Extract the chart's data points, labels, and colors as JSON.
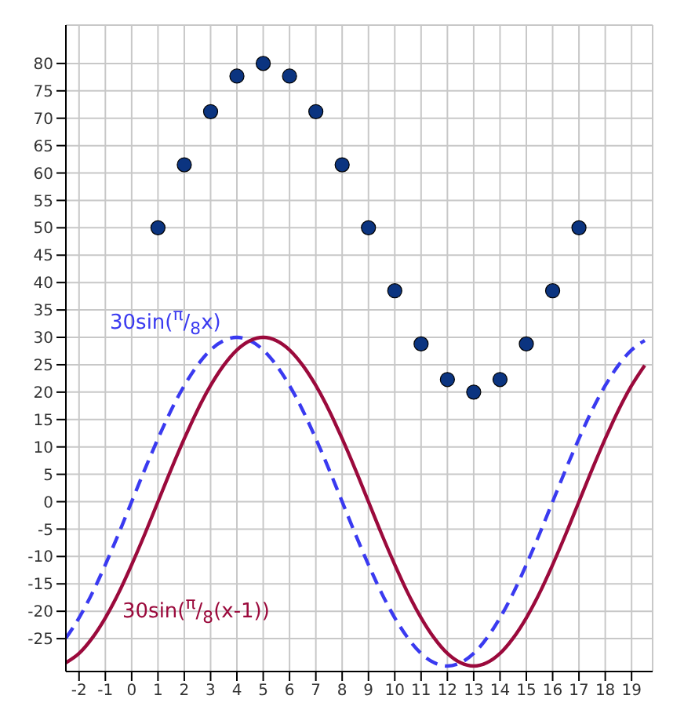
{
  "chart_data": {
    "type": "line",
    "xlim": [
      -2.5,
      19.8
    ],
    "ylim": [
      -31,
      87
    ],
    "xticks": [
      -2,
      -1,
      0,
      1,
      2,
      3,
      4,
      5,
      6,
      7,
      8,
      9,
      10,
      11,
      12,
      13,
      14,
      15,
      16,
      17,
      18,
      19
    ],
    "yticks": [
      -25,
      -20,
      -15,
      -10,
      -5,
      0,
      5,
      10,
      15,
      20,
      25,
      30,
      35,
      40,
      45,
      50,
      55,
      60,
      65,
      70,
      75,
      80
    ],
    "grid": true,
    "series": [
      {
        "name": "30sin($^{π}$/$_{8}$x)",
        "line_style": "dashed",
        "color": "#3a3af0",
        "x": [
          -2.5,
          -2,
          -1.5,
          -1,
          -0.5,
          0,
          0.5,
          1,
          1.5,
          2,
          2.5,
          3,
          3.5,
          4,
          4.5,
          5,
          5.5,
          6,
          6.5,
          7,
          7.5,
          8,
          8.5,
          9,
          9.5,
          10,
          10.5,
          11,
          11.5,
          12,
          12.5,
          13,
          13.5,
          14,
          14.5,
          15,
          15.5,
          16,
          16.5,
          17,
          17.5,
          18,
          18.5,
          19,
          19.5
        ],
        "values": [
          -24.9,
          -21.2,
          -16.7,
          -11.5,
          -5.9,
          0,
          5.9,
          11.5,
          16.7,
          21.2,
          24.9,
          27.7,
          29.4,
          30,
          29.4,
          27.7,
          24.9,
          21.2,
          16.7,
          11.5,
          5.9,
          0,
          -5.9,
          -11.5,
          -16.7,
          -21.2,
          -24.9,
          -27.7,
          -29.4,
          -30,
          -29.4,
          -27.7,
          -24.9,
          -21.2,
          -16.7,
          -11.5,
          -5.9,
          0,
          5.9,
          11.5,
          16.7,
          21.2,
          24.9,
          27.7,
          29.4
        ]
      },
      {
        "name": "30sin($^{π}$/$_{8}$(x-1))",
        "line_style": "solid",
        "color": "#9b0a3c",
        "x": [
          -2.5,
          -2,
          -1.5,
          -1,
          -0.5,
          0,
          0.5,
          1,
          1.5,
          2,
          2.5,
          3,
          3.5,
          4,
          4.5,
          5,
          5.5,
          6,
          6.5,
          7,
          7.5,
          8,
          8.5,
          9,
          9.5,
          10,
          10.5,
          11,
          11.5,
          12,
          12.5,
          13,
          13.5,
          14,
          14.5,
          15,
          15.5,
          16,
          16.5,
          17,
          17.5,
          18,
          18.5,
          19,
          19.5
        ],
        "values": [
          -29.4,
          -27.7,
          -24.9,
          -21.2,
          -16.7,
          -11.5,
          -5.9,
          0,
          5.9,
          11.5,
          16.7,
          21.2,
          24.9,
          27.7,
          29.4,
          30,
          29.4,
          27.7,
          24.9,
          21.2,
          16.7,
          11.5,
          5.9,
          0,
          -5.9,
          -11.5,
          -16.7,
          -21.2,
          -24.9,
          -27.7,
          -29.4,
          -30,
          -29.4,
          -27.7,
          -24.9,
          -21.2,
          -16.7,
          -11.5,
          -5.9,
          0,
          5.9,
          11.5,
          16.7,
          21.2,
          24.9
        ]
      },
      {
        "type": "scatter",
        "marker": "circle",
        "color": "#0b3480",
        "x": [
          1,
          2,
          3,
          4,
          5,
          6,
          7,
          8,
          9,
          10,
          11,
          12,
          13,
          14,
          15,
          16,
          17
        ],
        "values": [
          50,
          61.5,
          71.2,
          77.7,
          80,
          77.7,
          71.2,
          61.5,
          50,
          38.5,
          28.8,
          22.3,
          20,
          22.3,
          28.8,
          38.5,
          50
        ]
      }
    ]
  }
}
